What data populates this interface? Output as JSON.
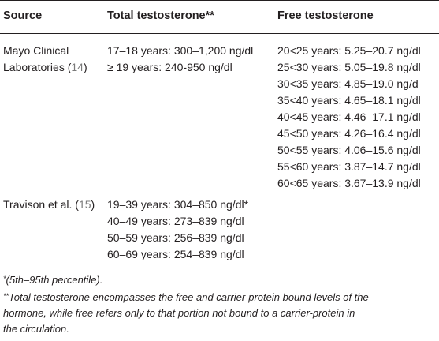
{
  "table": {
    "headers": {
      "source": "Source",
      "total": "Total testosterone**",
      "free": "Free testosterone"
    },
    "mayo": {
      "source_line1": "Mayo Clinical",
      "source_line2": "Laboratories (",
      "ref": "14",
      "ref_close": ")",
      "total": [
        "17–18 years: 300–1,200 ng/dl",
        "≥ 19 years: 240-950 ng/dl"
      ],
      "free": [
        "20<25 years: 5.25–20.7 ng/dl",
        "25<30 years: 5.05–19.8 ng/dl",
        "30<35 years: 4.85–19.0 ng/d",
        "35<40 years: 4.65–18.1 ng/dl",
        "40<45 years: 4.46–17.1 ng/dl",
        "45<50 years: 4.26–16.4 ng/dl",
        "50<55 years: 4.06–15.6 ng/dl",
        "55<60 years: 3.87–14.7 ng/dl",
        "60<65 years: 3.67–13.9 ng/dl"
      ]
    },
    "travison": {
      "source": "Travison et al. (",
      "ref": "15",
      "ref_close": ")",
      "total": [
        "19–39 years: 304–850 ng/dl*",
        "40–49 years: 273–839 ng/dl",
        "50–59 years: 256–839 ng/dl",
        "60–69 years: 254–839 ng/dl"
      ]
    }
  },
  "footnotes": {
    "fn1_mark": "*",
    "fn1_text": "(5th–95th percentile).",
    "fn2_mark": "**",
    "fn2_line1": "Total testosterone encompasses the free and carrier-protein bound levels of the",
    "fn2_line2": "hormone, while free refers only to that portion not bound to a carrier-protein in",
    "fn2_line3": "the circulation."
  }
}
